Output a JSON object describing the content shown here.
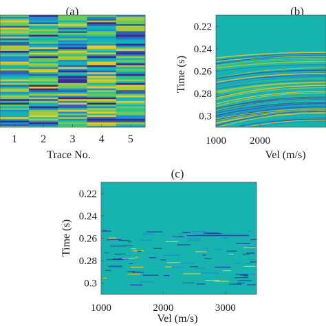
{
  "chart_data": [
    {
      "panel_label": "(a)",
      "type": "heatmap",
      "xlabel": "Trace No.",
      "ylabel": "",
      "x_ticks": [
        "1",
        "2",
        "3",
        "4",
        "5"
      ],
      "xlim": [
        0.5,
        5.5
      ],
      "y_ticks": [],
      "colors": [
        "#3a2a8a",
        "#2f60b3",
        "#1f8cd0",
        "#14b3b8",
        "#2ec28b",
        "#6bca5c",
        "#a8c93c",
        "#e4c832"
      ],
      "background": "#17b3ae",
      "grid": false
    },
    {
      "panel_label": "(b)",
      "type": "heatmap",
      "xlabel": "Vel (m/s)",
      "ylabel": "Time (s)",
      "x_ticks": [
        "1000",
        "2000"
      ],
      "xlim": [
        1000,
        3500
      ],
      "y_ticks": [
        "0.22",
        "0.24",
        "0.26",
        "0.28",
        "0.3"
      ],
      "ylim": [
        0.21,
        0.31
      ],
      "colors": [
        "#2f60b3",
        "#1f8cd0",
        "#2ec28b",
        "#6bca5c",
        "#a8c93c",
        "#e4c832"
      ],
      "background": "#17b3ae",
      "grid": false
    },
    {
      "panel_label": "(c)",
      "type": "heatmap",
      "xlabel": "Vel (m/s)",
      "ylabel": "Time (s)",
      "x_ticks": [
        "1000",
        "2000",
        "3000"
      ],
      "xlim": [
        1000,
        3500
      ],
      "y_ticks": [
        "0.22",
        "0.24",
        "0.26",
        "0.28",
        "0.3"
      ],
      "ylim": [
        0.21,
        0.31
      ],
      "colors": [
        "#2a3fa8",
        "#1f8cd0",
        "#e4c832"
      ],
      "background": "#17b3ae",
      "grid": false
    }
  ]
}
